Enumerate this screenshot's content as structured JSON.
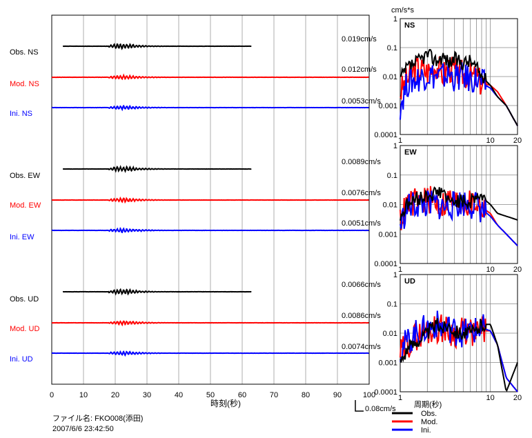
{
  "time_axis": {
    "ticks": [
      "0",
      "10",
      "20",
      "30",
      "40",
      "50",
      "60",
      "70",
      "80",
      "90",
      "100"
    ],
    "label": "時刻(秒)"
  },
  "waveform_panel": {
    "groups": [
      {
        "traces": [
          {
            "label": "Obs. NS",
            "amplitude": "0.019cm/s",
            "color": "#000000",
            "series": "obs"
          },
          {
            "label": "Mod. NS",
            "amplitude": "0.012cm/s",
            "color": "#ff0000",
            "series": "mod"
          },
          {
            "label": "Ini. NS",
            "amplitude": "0.0053cm/s",
            "color": "#0000ff",
            "series": "ini"
          }
        ]
      },
      {
        "traces": [
          {
            "label": "Obs. EW",
            "amplitude": "0.0089cm/s",
            "color": "#000000",
            "series": "obs"
          },
          {
            "label": "Mod. EW",
            "amplitude": "0.0076cm/s",
            "color": "#ff0000",
            "series": "mod"
          },
          {
            "label": "Ini. EW",
            "amplitude": "0.0051cm/s",
            "color": "#0000ff",
            "series": "ini"
          }
        ]
      },
      {
        "traces": [
          {
            "label": "Obs. UD",
            "amplitude": "0.0066cm/s",
            "color": "#000000",
            "series": "obs"
          },
          {
            "label": "Mod. UD",
            "amplitude": "0.0086cm/s",
            "color": "#ff0000",
            "series": "mod"
          },
          {
            "label": "Ini. UD",
            "amplitude": "0.0074cm/s",
            "color": "#0000ff",
            "series": "ini"
          }
        ]
      }
    ],
    "scale_bar_label": "0.08cm/s"
  },
  "spectra_panel": {
    "unit_label": "cm/s*s",
    "y_ticks": [
      "1",
      "0.1",
      "0.01",
      "0.001",
      "0.0001"
    ],
    "x_ticks": [
      "1",
      "10",
      "20"
    ],
    "x_label": "周期(秒)",
    "panels": [
      {
        "name": "NS"
      },
      {
        "name": "EW"
      },
      {
        "name": "UD"
      }
    ]
  },
  "legend": {
    "entries": [
      {
        "label": "Obs.",
        "color": "#000000"
      },
      {
        "label": "Mod.",
        "color": "#ff0000"
      },
      {
        "label": "Ini.",
        "color": "#0000ff"
      }
    ]
  },
  "footer": {
    "file_label": "ファイル名: FKO008(添田)",
    "datetime": "2007/6/6  23:42:50"
  },
  "chart_data": [
    {
      "type": "line",
      "title": "",
      "xlabel": "時刻(秒)",
      "ylabel": "",
      "xlim": [
        0,
        100
      ],
      "grid": true,
      "series": [
        {
          "name": "Obs. NS",
          "peak_amplitude_cm_s": 0.019,
          "time_range_s": [
            3,
            63
          ]
        },
        {
          "name": "Mod. NS",
          "peak_amplitude_cm_s": 0.012,
          "time_range_s": [
            0,
            100
          ]
        },
        {
          "name": "Ini. NS",
          "peak_amplitude_cm_s": 0.0053,
          "time_range_s": [
            0,
            100
          ]
        },
        {
          "name": "Obs. EW",
          "peak_amplitude_cm_s": 0.0089,
          "time_range_s": [
            3,
            63
          ]
        },
        {
          "name": "Mod. EW",
          "peak_amplitude_cm_s": 0.0076,
          "time_range_s": [
            0,
            100
          ]
        },
        {
          "name": "Ini. EW",
          "peak_amplitude_cm_s": 0.0051,
          "time_range_s": [
            0,
            100
          ]
        },
        {
          "name": "Obs. UD",
          "peak_amplitude_cm_s": 0.0066,
          "time_range_s": [
            3,
            63
          ]
        },
        {
          "name": "Mod. UD",
          "peak_amplitude_cm_s": 0.0086,
          "time_range_s": [
            0,
            100
          ]
        },
        {
          "name": "Ini. UD",
          "peak_amplitude_cm_s": 0.0074,
          "time_range_s": [
            0,
            100
          ]
        }
      ]
    },
    {
      "type": "line",
      "title": "NS",
      "xlabel": "周期(秒)",
      "ylabel": "cm/s*s",
      "xscale": "log",
      "yscale": "log",
      "xlim": [
        1,
        20
      ],
      "ylim": [
        0.0001,
        1
      ],
      "grid": true,
      "x": [
        1,
        1.2,
        1.5,
        2,
        2.5,
        3,
        3.5,
        4,
        5,
        6,
        7,
        8,
        10,
        12,
        15,
        20
      ],
      "series": [
        {
          "name": "Obs.",
          "values": [
            0.008,
            0.02,
            0.03,
            0.06,
            0.035,
            0.05,
            0.03,
            0.04,
            0.03,
            0.035,
            0.02,
            0.01,
            0.005,
            0.002,
            0.001,
            0.0002
          ]
        },
        {
          "name": "Mod.",
          "values": [
            0.003,
            0.008,
            0.02,
            0.015,
            0.025,
            0.012,
            0.02,
            0.015,
            0.012,
            0.01,
            0.009,
            0.006,
            0.005,
            0.003,
            0.001,
            0.0002
          ]
        },
        {
          "name": "Ini.",
          "values": [
            0.001,
            0.006,
            0.008,
            0.012,
            0.01,
            0.01,
            0.012,
            0.009,
            0.01,
            0.008,
            0.008,
            0.006,
            0.004,
            0.002,
            0.001,
            0.0002
          ]
        }
      ]
    },
    {
      "type": "line",
      "title": "EW",
      "xlabel": "周期(秒)",
      "ylabel": "cm/s*s",
      "xscale": "log",
      "yscale": "log",
      "xlim": [
        1,
        20
      ],
      "ylim": [
        0.0001,
        1
      ],
      "grid": true,
      "x": [
        1,
        1.2,
        1.5,
        2,
        2.5,
        3,
        3.5,
        4,
        5,
        6,
        7,
        8,
        10,
        12,
        15,
        20
      ],
      "series": [
        {
          "name": "Obs.",
          "values": [
            0.004,
            0.01,
            0.015,
            0.02,
            0.025,
            0.03,
            0.01,
            0.015,
            0.012,
            0.012,
            0.02,
            0.018,
            0.01,
            0.005,
            0.004,
            0.003
          ]
        },
        {
          "name": "Mod.",
          "values": [
            0.003,
            0.01,
            0.012,
            0.015,
            0.012,
            0.01,
            0.015,
            0.012,
            0.012,
            0.01,
            0.012,
            0.008,
            0.005,
            0.002,
            0.001,
            0.0004
          ]
        },
        {
          "name": "Ini.",
          "values": [
            0.002,
            0.008,
            0.01,
            0.01,
            0.01,
            0.008,
            0.01,
            0.009,
            0.012,
            0.01,
            0.01,
            0.007,
            0.004,
            0.002,
            0.001,
            0.0004
          ]
        }
      ]
    },
    {
      "type": "line",
      "title": "UD",
      "xlabel": "周期(秒)",
      "ylabel": "cm/s*s",
      "xscale": "log",
      "yscale": "log",
      "xlim": [
        1,
        20
      ],
      "ylim": [
        0.0001,
        1
      ],
      "grid": true,
      "x": [
        1,
        1.2,
        1.5,
        2,
        2.5,
        3,
        3.5,
        4,
        5,
        6,
        7,
        8,
        10,
        12,
        15,
        20
      ],
      "series": [
        {
          "name": "Obs.",
          "values": [
            0.001,
            0.003,
            0.005,
            0.01,
            0.02,
            0.015,
            0.02,
            0.012,
            0.01,
            0.01,
            0.012,
            0.02,
            0.02,
            0.004,
            0.0001,
            0.001
          ]
        },
        {
          "name": "Mod.",
          "values": [
            0.002,
            0.004,
            0.008,
            0.012,
            0.015,
            0.015,
            0.012,
            0.01,
            0.012,
            0.01,
            0.01,
            0.012,
            0.012,
            0.004,
            0.0003,
            0.0001
          ]
        },
        {
          "name": "Ini.",
          "values": [
            0.003,
            0.005,
            0.01,
            0.015,
            0.02,
            0.015,
            0.015,
            0.012,
            0.01,
            0.012,
            0.012,
            0.015,
            0.012,
            0.004,
            0.0003,
            0.0001
          ]
        }
      ]
    }
  ]
}
